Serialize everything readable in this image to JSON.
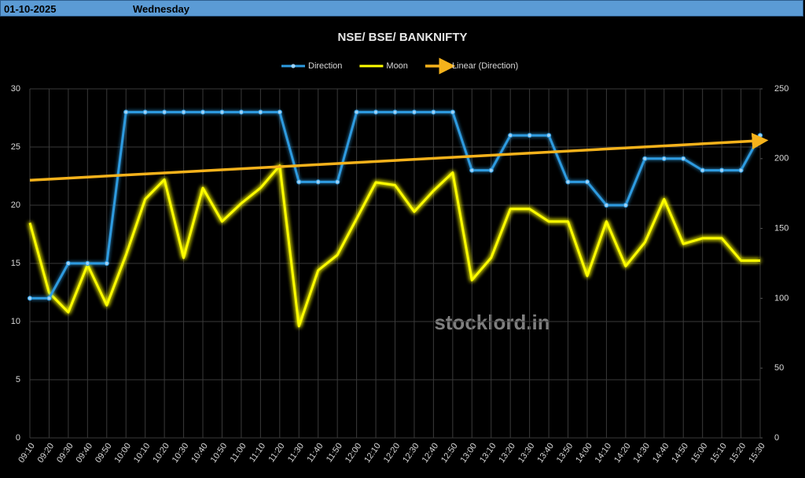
{
  "header": {
    "date": "01-10-2025",
    "day": "Wednesday"
  },
  "chart_data": {
    "type": "line",
    "title": "NSE/ BSE/ BANKNIFTY",
    "watermark": "stocklord.in",
    "categories": [
      "09:10",
      "09:20",
      "09:30",
      "09:40",
      "09:50",
      "10:00",
      "10:10",
      "10:20",
      "10:30",
      "10:40",
      "10:50",
      "11:00",
      "11:10",
      "11:20",
      "11:30",
      "11:40",
      "11:50",
      "12:00",
      "12:10",
      "12:20",
      "12:30",
      "12:40",
      "12:50",
      "13:00",
      "13:10",
      "13:20",
      "13:30",
      "13:40",
      "13:50",
      "14:00",
      "14:10",
      "14:20",
      "14:30",
      "14:40",
      "14:50",
      "15:00",
      "15:10",
      "15:20",
      "15:30"
    ],
    "series": [
      {
        "name": "Direction",
        "color": "#2e9be0",
        "axis": "y",
        "markers": true,
        "values": [
          12,
          12,
          15,
          15,
          15,
          28,
          28,
          28,
          28,
          28,
          28,
          28,
          28,
          28,
          22,
          22,
          22,
          28,
          28,
          28,
          28,
          28,
          28,
          23,
          23,
          26,
          26,
          26,
          22,
          22,
          20,
          20,
          24,
          24,
          24,
          23,
          23,
          23,
          26
        ]
      },
      {
        "name": "Moon",
        "color": "#ffff00",
        "axis": "y2",
        "markers": false,
        "values": [
          154,
          104,
          90,
          124,
          95,
          131,
          171,
          185,
          129,
          179,
          155,
          168,
          179,
          195,
          80,
          120,
          131,
          157,
          183,
          181,
          162,
          177,
          190,
          113,
          129,
          164,
          164,
          155,
          155,
          116,
          155,
          123,
          140,
          171,
          139,
          143,
          143,
          127,
          127
        ]
      }
    ],
    "trendline": {
      "name": "Linear (Direction)",
      "color": "#f5b21b",
      "of_series": 0
    },
    "ylim": [
      0,
      30
    ],
    "yticks": [
      0,
      5,
      10,
      15,
      20,
      25,
      30
    ],
    "y2lim": [
      0,
      250
    ],
    "y2ticks": [
      0,
      50,
      100,
      150,
      200,
      250
    ],
    "grid": true,
    "legend": "top"
  }
}
